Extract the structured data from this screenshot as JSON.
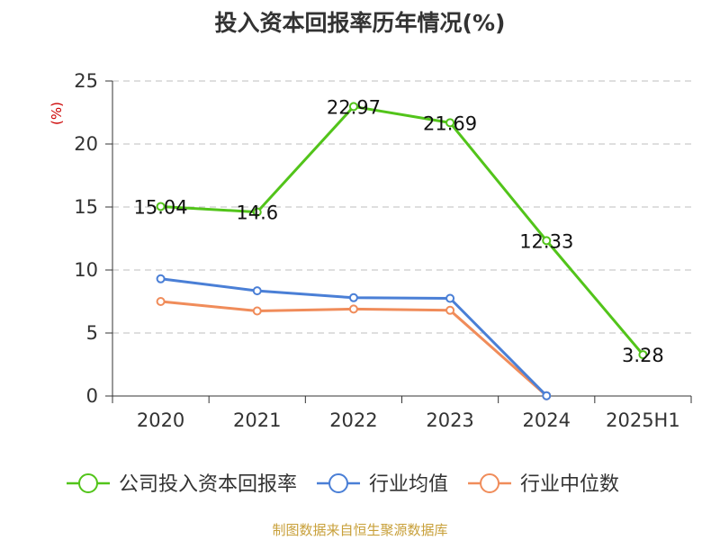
{
  "chart_data": {
    "type": "line",
    "title": "投入资本回报率历年情况(%)",
    "ylabel": "(%)",
    "categories": [
      "2020",
      "2021",
      "2022",
      "2023",
      "2024",
      "2025H1"
    ],
    "ylim": [
      0,
      25
    ],
    "yticks": [
      0,
      5,
      10,
      15,
      20,
      25
    ],
    "grid": true,
    "legend_position": "bottom",
    "series": [
      {
        "name": "公司投入资本回报率",
        "color": "#52c41a",
        "values": [
          15.04,
          14.6,
          22.97,
          21.69,
          12.33,
          3.28
        ],
        "labels": [
          "15.04",
          "14.6",
          "22.97",
          "21.69",
          "12.33",
          "3.28"
        ]
      },
      {
        "name": "行业均值",
        "color": "#4a7fd6",
        "values": [
          9.3,
          8.35,
          7.8,
          7.75,
          0.02,
          null
        ]
      },
      {
        "name": "行业中位数",
        "color": "#f08c5a",
        "values": [
          7.5,
          6.75,
          6.9,
          6.8,
          0.02,
          null
        ]
      }
    ]
  },
  "source": "制图数据来自恒生聚源数据库"
}
